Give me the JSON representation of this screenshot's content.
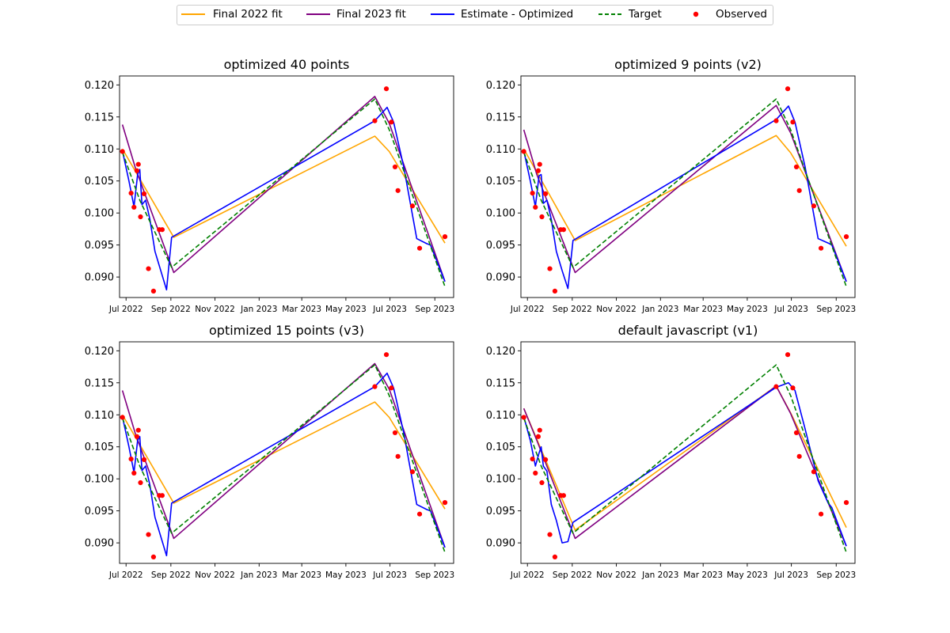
{
  "legend": {
    "items": [
      {
        "label": "Final 2022 fit",
        "color": "#ffa500",
        "style": "solid"
      },
      {
        "label": "Final 2023 fit",
        "color": "#800080",
        "style": "solid"
      },
      {
        "label": "Estimate - Optimized",
        "color": "#0000ff",
        "style": "solid"
      },
      {
        "label": "Target",
        "color": "#008000",
        "style": "dashed"
      },
      {
        "label": "Observed",
        "color": "#ff0000",
        "style": "marker"
      }
    ]
  },
  "chart_data": [
    {
      "type": "line",
      "title": "optimized 40 points",
      "xlabel": "",
      "ylabel": "",
      "xlim": [
        "2022-06-22",
        "2023-09-27"
      ],
      "ylim": [
        0.0868,
        0.1214
      ],
      "xticks": [
        "2022-07-01",
        "2022-09-01",
        "2022-11-01",
        "2023-01-01",
        "2023-03-01",
        "2023-05-01",
        "2023-07-01",
        "2023-09-01"
      ],
      "xtick_labels": [
        "Jul 2022",
        "Sep 2022",
        "Nov 2022",
        "Jan 2023",
        "Mar 2023",
        "May 2023",
        "Jul 2023",
        "Sep 2023"
      ],
      "yticks": [
        0.09,
        0.095,
        0.1,
        0.105,
        0.11,
        0.115,
        0.12
      ],
      "ytick_labels": [
        "0.090",
        "0.095",
        "0.100",
        "0.105",
        "0.110",
        "0.115",
        "0.120"
      ],
      "series": [
        {
          "name": "Final 2022 fit",
          "color": "#ffa500",
          "style": "solid",
          "x": [
            "2022-06-26",
            "2022-09-05",
            "2023-06-10",
            "2023-06-30",
            "2023-09-15"
          ],
          "y": [
            0.11,
            0.0962,
            0.112,
            0.1096,
            0.0953
          ]
        },
        {
          "name": "Final 2023 fit",
          "color": "#800080",
          "style": "solid",
          "x": [
            "2022-06-26",
            "2022-07-14",
            "2022-09-05",
            "2023-06-10",
            "2023-06-30",
            "2023-09-15"
          ],
          "y": [
            0.1138,
            0.107,
            0.0907,
            0.1182,
            0.114,
            0.0893
          ]
        },
        {
          "name": "Estimate - Optimized",
          "color": "#0000ff",
          "style": "solid",
          "x": [
            "2022-06-26",
            "2022-07-05",
            "2022-07-12",
            "2022-07-17",
            "2022-07-20",
            "2022-07-23",
            "2022-07-28",
            "2022-08-03",
            "2022-08-10",
            "2022-08-18",
            "2022-08-26",
            "2022-09-02",
            "2023-06-10",
            "2023-06-27",
            "2023-07-06",
            "2023-07-20",
            "2023-08-07",
            "2023-08-21",
            "2023-08-26",
            "2023-09-15"
          ],
          "y": [
            0.1097,
            0.105,
            0.101,
            0.106,
            0.1068,
            0.1013,
            0.102,
            0.099,
            0.094,
            0.091,
            0.088,
            0.0962,
            0.1144,
            0.1165,
            0.1142,
            0.1072,
            0.096,
            0.0952,
            0.095,
            0.0893
          ]
        },
        {
          "name": "Target",
          "color": "#008000",
          "style": "dashed",
          "x": [
            "2022-06-26",
            "2022-07-20",
            "2022-09-02",
            "2023-06-10",
            "2023-06-30",
            "2023-09-15"
          ],
          "y": [
            0.1095,
            0.102,
            0.0915,
            0.1178,
            0.113,
            0.0885
          ]
        },
        {
          "name": "Observed",
          "color": "#ff0000",
          "style": "marker",
          "x": [
            "2022-06-26",
            "2022-07-08",
            "2022-07-12",
            "2022-07-16",
            "2022-07-18",
            "2022-07-21",
            "2022-07-26",
            "2022-08-01",
            "2022-08-08",
            "2022-08-16",
            "2022-08-20",
            "2023-06-10",
            "2023-06-26",
            "2023-07-03",
            "2023-07-08",
            "2023-07-12",
            "2023-08-01",
            "2023-08-11",
            "2023-09-15"
          ],
          "y": [
            0.1096,
            0.1031,
            0.1009,
            0.1066,
            0.1076,
            0.0994,
            0.103,
            0.0913,
            0.0878,
            0.0974,
            0.0974,
            0.1144,
            0.1194,
            0.1142,
            0.1072,
            0.1035,
            0.1011,
            0.0945,
            0.0963
          ]
        }
      ]
    },
    {
      "type": "line",
      "title": "optimized 9 points (v2)",
      "xlabel": "",
      "ylabel": "",
      "xlim": [
        "2022-06-22",
        "2023-09-27"
      ],
      "ylim": [
        0.0868,
        0.1214
      ],
      "xticks": [
        "2022-07-01",
        "2022-09-01",
        "2022-11-01",
        "2023-01-01",
        "2023-03-01",
        "2023-05-01",
        "2023-07-01",
        "2023-09-01"
      ],
      "xtick_labels": [
        "Jul 2022",
        "Sep 2022",
        "Nov 2022",
        "Jan 2023",
        "Mar 2023",
        "May 2023",
        "Jul 2023",
        "Sep 2023"
      ],
      "yticks": [
        0.09,
        0.095,
        0.1,
        0.105,
        0.11,
        0.115,
        0.12
      ],
      "ytick_labels": [
        "0.090",
        "0.095",
        "0.100",
        "0.105",
        "0.110",
        "0.115",
        "0.120"
      ],
      "series": [
        {
          "name": "Final 2022 fit",
          "color": "#ffa500",
          "style": "solid",
          "x": [
            "2022-06-26",
            "2022-09-05",
            "2023-06-10",
            "2023-06-30",
            "2023-09-15"
          ],
          "y": [
            0.11,
            0.0957,
            0.1121,
            0.1094,
            0.0948
          ]
        },
        {
          "name": "Final 2023 fit",
          "color": "#800080",
          "style": "solid",
          "x": [
            "2022-06-26",
            "2022-07-14",
            "2022-09-05",
            "2023-06-10",
            "2023-06-30",
            "2023-09-15"
          ],
          "y": [
            0.113,
            0.106,
            0.0907,
            0.1168,
            0.1125,
            0.0893
          ]
        },
        {
          "name": "Estimate - Optimized",
          "color": "#0000ff",
          "style": "solid",
          "x": [
            "2022-06-26",
            "2022-07-05",
            "2022-07-12",
            "2022-07-17",
            "2022-07-20",
            "2022-07-23",
            "2022-07-28",
            "2022-08-03",
            "2022-08-10",
            "2022-08-18",
            "2022-08-26",
            "2022-09-02",
            "2023-06-10",
            "2023-06-27",
            "2023-07-06",
            "2023-07-20",
            "2023-08-07",
            "2023-08-21",
            "2023-08-26",
            "2023-09-15"
          ],
          "y": [
            0.1097,
            0.105,
            0.101,
            0.1058,
            0.106,
            0.1015,
            0.102,
            0.099,
            0.094,
            0.091,
            0.0882,
            0.0957,
            0.1146,
            0.1167,
            0.1142,
            0.1072,
            0.096,
            0.0953,
            0.095,
            0.0893
          ]
        },
        {
          "name": "Target",
          "color": "#008000",
          "style": "dashed",
          "x": [
            "2022-06-26",
            "2022-07-20",
            "2022-09-02",
            "2023-06-10",
            "2023-06-30",
            "2023-09-15"
          ],
          "y": [
            0.1095,
            0.102,
            0.0915,
            0.1178,
            0.113,
            0.0885
          ]
        },
        {
          "name": "Observed",
          "color": "#ff0000",
          "style": "marker",
          "x": [
            "2022-06-26",
            "2022-07-08",
            "2022-07-12",
            "2022-07-16",
            "2022-07-18",
            "2022-07-21",
            "2022-07-26",
            "2022-08-01",
            "2022-08-08",
            "2022-08-16",
            "2022-08-20",
            "2023-06-10",
            "2023-06-26",
            "2023-07-03",
            "2023-07-08",
            "2023-07-12",
            "2023-08-01",
            "2023-08-11",
            "2023-09-15"
          ],
          "y": [
            0.1096,
            0.1031,
            0.1009,
            0.1066,
            0.1076,
            0.0994,
            0.103,
            0.0913,
            0.0878,
            0.0974,
            0.0974,
            0.1144,
            0.1194,
            0.1142,
            0.1072,
            0.1035,
            0.1011,
            0.0945,
            0.0963
          ]
        }
      ]
    },
    {
      "type": "line",
      "title": "optimized 15 points (v3)",
      "xlabel": "",
      "ylabel": "",
      "xlim": [
        "2022-06-22",
        "2023-09-27"
      ],
      "ylim": [
        0.0868,
        0.1214
      ],
      "xticks": [
        "2022-07-01",
        "2022-09-01",
        "2022-11-01",
        "2023-01-01",
        "2023-03-01",
        "2023-05-01",
        "2023-07-01",
        "2023-09-01"
      ],
      "xtick_labels": [
        "Jul 2022",
        "Sep 2022",
        "Nov 2022",
        "Jan 2023",
        "Mar 2023",
        "May 2023",
        "Jul 2023",
        "Sep 2023"
      ],
      "yticks": [
        0.09,
        0.095,
        0.1,
        0.105,
        0.11,
        0.115,
        0.12
      ],
      "ytick_labels": [
        "0.090",
        "0.095",
        "0.100",
        "0.105",
        "0.110",
        "0.115",
        "0.120"
      ],
      "series": [
        {
          "name": "Final 2022 fit",
          "color": "#ffa500",
          "style": "solid",
          "x": [
            "2022-06-26",
            "2022-09-05",
            "2023-06-10",
            "2023-06-30",
            "2023-09-15"
          ],
          "y": [
            0.11,
            0.0962,
            0.112,
            0.1096,
            0.0953
          ]
        },
        {
          "name": "Final 2023 fit",
          "color": "#800080",
          "style": "solid",
          "x": [
            "2022-06-26",
            "2022-07-14",
            "2022-09-05",
            "2023-06-10",
            "2023-06-30",
            "2023-09-15"
          ],
          "y": [
            0.1138,
            0.107,
            0.0907,
            0.118,
            0.114,
            0.0893
          ]
        },
        {
          "name": "Estimate - Optimized",
          "color": "#0000ff",
          "style": "solid",
          "x": [
            "2022-06-26",
            "2022-07-05",
            "2022-07-12",
            "2022-07-17",
            "2022-07-20",
            "2022-07-23",
            "2022-07-28",
            "2022-08-03",
            "2022-08-10",
            "2022-08-18",
            "2022-08-26",
            "2022-09-02",
            "2023-06-10",
            "2023-06-27",
            "2023-07-06",
            "2023-07-20",
            "2023-08-07",
            "2023-08-21",
            "2023-08-26",
            "2023-09-15"
          ],
          "y": [
            0.1097,
            0.105,
            0.101,
            0.106,
            0.1066,
            0.1013,
            0.102,
            0.099,
            0.094,
            0.091,
            0.088,
            0.0962,
            0.1144,
            0.1165,
            0.1142,
            0.1072,
            0.096,
            0.0952,
            0.095,
            0.0893
          ]
        },
        {
          "name": "Target",
          "color": "#008000",
          "style": "dashed",
          "x": [
            "2022-06-26",
            "2022-07-20",
            "2022-09-02",
            "2023-06-10",
            "2023-06-30",
            "2023-09-15"
          ],
          "y": [
            0.1095,
            0.102,
            0.0915,
            0.1178,
            0.113,
            0.0885
          ]
        },
        {
          "name": "Observed",
          "color": "#ff0000",
          "style": "marker",
          "x": [
            "2022-06-26",
            "2022-07-08",
            "2022-07-12",
            "2022-07-16",
            "2022-07-18",
            "2022-07-21",
            "2022-07-26",
            "2022-08-01",
            "2022-08-08",
            "2022-08-16",
            "2022-08-20",
            "2023-06-10",
            "2023-06-26",
            "2023-07-03",
            "2023-07-08",
            "2023-07-12",
            "2023-08-01",
            "2023-08-11",
            "2023-09-15"
          ],
          "y": [
            0.1096,
            0.1031,
            0.1009,
            0.1066,
            0.1076,
            0.0994,
            0.103,
            0.0913,
            0.0878,
            0.0974,
            0.0974,
            0.1144,
            0.1194,
            0.1142,
            0.1072,
            0.1035,
            0.1011,
            0.0945,
            0.0963
          ]
        }
      ]
    },
    {
      "type": "line",
      "title": "default javascript (v1)",
      "xlabel": "",
      "ylabel": "",
      "xlim": [
        "2022-06-22",
        "2023-09-27"
      ],
      "ylim": [
        0.0868,
        0.1214
      ],
      "xticks": [
        "2022-07-01",
        "2022-09-01",
        "2022-11-01",
        "2023-01-01",
        "2023-03-01",
        "2023-05-01",
        "2023-07-01",
        "2023-09-01"
      ],
      "xtick_labels": [
        "Jul 2022",
        "Sep 2022",
        "Nov 2022",
        "Jan 2023",
        "Mar 2023",
        "May 2023",
        "Jul 2023",
        "Sep 2023"
      ],
      "yticks": [
        0.09,
        0.095,
        0.1,
        0.105,
        0.11,
        0.115,
        0.12
      ],
      "ytick_labels": [
        "0.090",
        "0.095",
        "0.100",
        "0.105",
        "0.110",
        "0.115",
        "0.120"
      ],
      "series": [
        {
          "name": "Final 2022 fit",
          "color": "#ffa500",
          "style": "solid",
          "x": [
            "2022-06-26",
            "2022-09-05",
            "2023-06-10",
            "2023-06-30",
            "2023-09-15"
          ],
          "y": [
            0.111,
            0.092,
            0.1145,
            0.1103,
            0.0924
          ]
        },
        {
          "name": "Final 2023 fit",
          "color": "#800080",
          "style": "solid",
          "x": [
            "2022-06-26",
            "2022-07-14",
            "2022-09-05",
            "2023-06-10",
            "2023-06-30",
            "2023-09-15"
          ],
          "y": [
            0.111,
            0.106,
            0.0907,
            0.1145,
            0.1102,
            0.0895
          ]
        },
        {
          "name": "Estimate - Optimized",
          "color": "#0000ff",
          "style": "solid",
          "x": [
            "2022-06-26",
            "2022-07-05",
            "2022-07-12",
            "2022-07-17",
            "2022-07-20",
            "2022-07-23",
            "2022-07-28",
            "2022-08-03",
            "2022-08-10",
            "2022-08-18",
            "2022-08-26",
            "2022-09-02",
            "2023-06-10",
            "2023-06-27",
            "2023-07-06",
            "2023-07-20",
            "2023-08-07",
            "2023-08-21",
            "2023-08-26",
            "2023-09-15"
          ],
          "y": [
            0.1097,
            0.106,
            0.102,
            0.104,
            0.105,
            0.102,
            0.1012,
            0.096,
            0.0935,
            0.09,
            0.0902,
            0.0932,
            0.1143,
            0.115,
            0.1138,
            0.1078,
            0.0997,
            0.0962,
            0.0955,
            0.0895
          ]
        },
        {
          "name": "Target",
          "color": "#008000",
          "style": "dashed",
          "x": [
            "2022-06-26",
            "2022-07-20",
            "2022-09-02",
            "2023-06-10",
            "2023-06-30",
            "2023-09-15"
          ],
          "y": [
            0.1095,
            0.102,
            0.0915,
            0.1178,
            0.113,
            0.0885
          ]
        },
        {
          "name": "Observed",
          "color": "#ff0000",
          "style": "marker",
          "x": [
            "2022-06-26",
            "2022-07-08",
            "2022-07-12",
            "2022-07-16",
            "2022-07-18",
            "2022-07-21",
            "2022-07-26",
            "2022-08-01",
            "2022-08-08",
            "2022-08-16",
            "2022-08-20",
            "2023-06-10",
            "2023-06-26",
            "2023-07-03",
            "2023-07-08",
            "2023-07-12",
            "2023-08-01",
            "2023-08-11",
            "2023-09-15"
          ],
          "y": [
            0.1096,
            0.1031,
            0.1009,
            0.1066,
            0.1076,
            0.0994,
            0.103,
            0.0913,
            0.0878,
            0.0974,
            0.0974,
            0.1144,
            0.1194,
            0.1142,
            0.1072,
            0.1035,
            0.1011,
            0.0945,
            0.0963
          ]
        }
      ]
    }
  ]
}
